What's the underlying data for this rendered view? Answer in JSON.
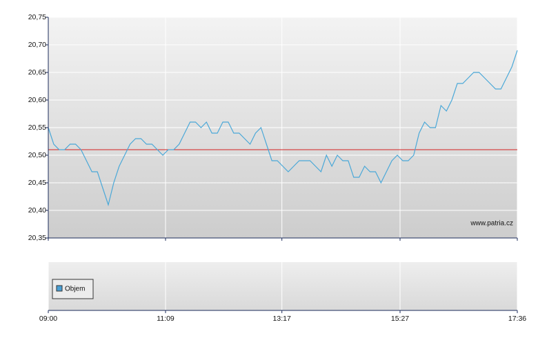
{
  "chart_data": {
    "type": "line",
    "x": [
      "09:00",
      "09:06",
      "09:12",
      "09:18",
      "09:24",
      "09:30",
      "09:36",
      "09:42",
      "09:48",
      "09:54",
      "10:00",
      "10:06",
      "10:12",
      "10:18",
      "10:24",
      "10:30",
      "10:36",
      "10:42",
      "10:48",
      "10:54",
      "11:00",
      "11:06",
      "11:12",
      "11:18",
      "11:24",
      "11:30",
      "11:36",
      "11:42",
      "11:48",
      "11:54",
      "12:00",
      "12:06",
      "12:12",
      "12:18",
      "12:24",
      "12:30",
      "12:36",
      "12:42",
      "12:48",
      "12:54",
      "13:00",
      "13:06",
      "13:12",
      "13:18",
      "13:24",
      "13:30",
      "13:36",
      "13:42",
      "13:48",
      "13:54",
      "14:00",
      "14:06",
      "14:12",
      "14:18",
      "14:24",
      "14:30",
      "14:36",
      "14:42",
      "14:48",
      "14:54",
      "15:00",
      "15:06",
      "15:12",
      "15:18",
      "15:24",
      "15:30",
      "15:36",
      "15:42",
      "15:48",
      "15:54",
      "16:00",
      "16:06",
      "16:12",
      "16:18",
      "16:24",
      "16:30",
      "16:36",
      "16:42",
      "16:48",
      "16:54",
      "17:00",
      "17:06",
      "17:12",
      "17:18",
      "17:24",
      "17:30",
      "17:36"
    ],
    "series": [
      {
        "color": "#4aa8d8",
        "values": [
          20.55,
          20.52,
          20.51,
          20.51,
          20.52,
          20.52,
          20.51,
          20.49,
          20.47,
          20.47,
          20.44,
          20.41,
          20.45,
          20.48,
          20.5,
          20.52,
          20.53,
          20.53,
          20.52,
          20.52,
          20.51,
          20.5,
          20.51,
          20.51,
          20.52,
          20.54,
          20.56,
          20.56,
          20.55,
          20.56,
          20.54,
          20.54,
          20.56,
          20.56,
          20.54,
          20.54,
          20.53,
          20.52,
          20.54,
          20.55,
          20.52,
          20.49,
          20.49,
          20.48,
          20.47,
          20.48,
          20.49,
          20.49,
          20.49,
          20.48,
          20.47,
          20.5,
          20.48,
          20.5,
          20.49,
          20.49,
          20.46,
          20.46,
          20.48,
          20.47,
          20.47,
          20.45,
          20.47,
          20.49,
          20.5,
          20.49,
          20.49,
          20.5,
          20.54,
          20.56,
          20.55,
          20.55,
          20.59,
          20.58,
          20.6,
          20.63,
          20.63,
          20.64,
          20.65,
          20.65,
          20.64,
          20.63,
          20.62,
          20.62,
          20.64,
          20.66,
          20.69
        ]
      }
    ],
    "xlim": [
      "09:00",
      "17:36"
    ],
    "xticks": [
      "09:00",
      "11:09",
      "13:17",
      "15:27",
      "17:36"
    ],
    "ylim": [
      20.35,
      20.75
    ],
    "yticks": [
      {
        "value": 20.35,
        "label": "20,35"
      },
      {
        "value": 20.4,
        "label": "20,40"
      },
      {
        "value": 20.45,
        "label": "20,45"
      },
      {
        "value": 20.5,
        "label": "20,50"
      },
      {
        "value": 20.55,
        "label": "20,55"
      },
      {
        "value": 20.6,
        "label": "20,60"
      },
      {
        "value": 20.65,
        "label": "20,65"
      },
      {
        "value": 20.7,
        "label": "20,70"
      },
      {
        "value": 20.75,
        "label": "20,75"
      }
    ],
    "grid": true,
    "reference_line": {
      "value": 20.51,
      "color": "#d42020"
    },
    "watermark": "www.patria.cz",
    "volume_panel": {
      "legend": "Objem",
      "color": "#4a9fd4"
    }
  }
}
